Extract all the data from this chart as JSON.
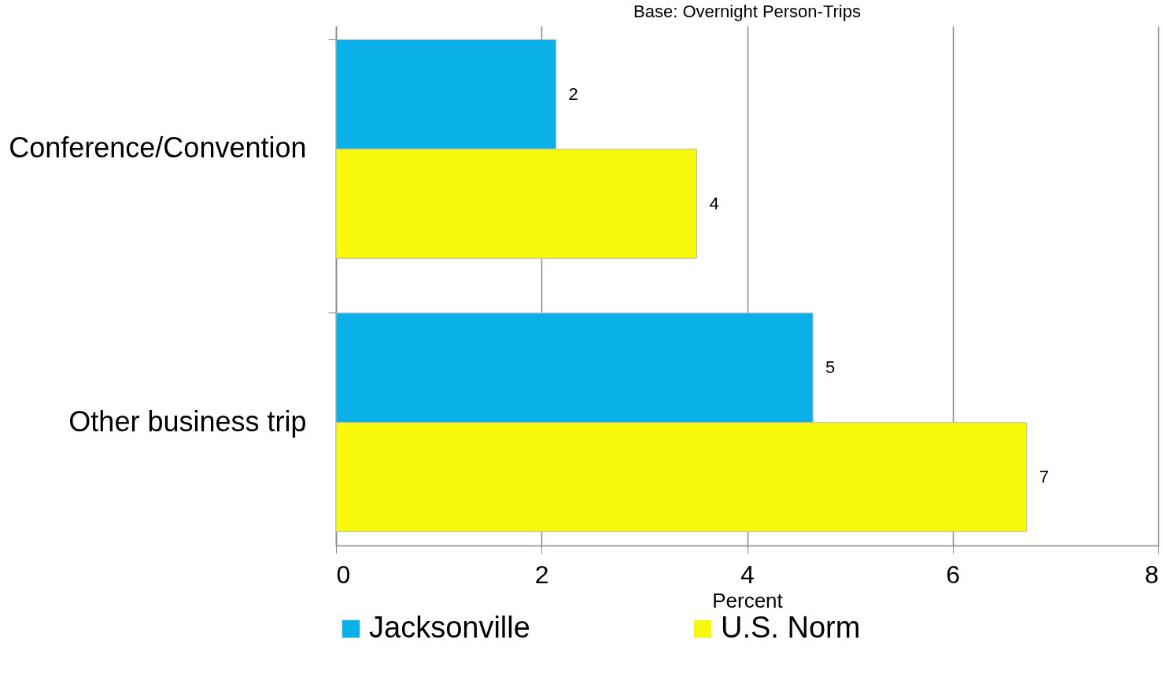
{
  "chart_data": {
    "type": "bar",
    "orientation": "horizontal",
    "title": "Base: Overnight Person-Trips",
    "xlabel": "Percent",
    "categories": [
      "Conference/Convention",
      "Other business trip"
    ],
    "series": [
      {
        "name": "Jacksonville",
        "color": "#0ab0e8",
        "values": [
          2.14,
          4.64
        ],
        "value_labels": [
          "2",
          "5"
        ]
      },
      {
        "name": "U.S. Norm",
        "color": "#f8f80a",
        "values": [
          3.51,
          6.72
        ],
        "value_labels": [
          "4",
          "7"
        ]
      }
    ],
    "xlim": [
      0,
      8
    ],
    "xticks": [
      0,
      2,
      4,
      6,
      8
    ],
    "grid": "x",
    "legend": "bottom"
  }
}
